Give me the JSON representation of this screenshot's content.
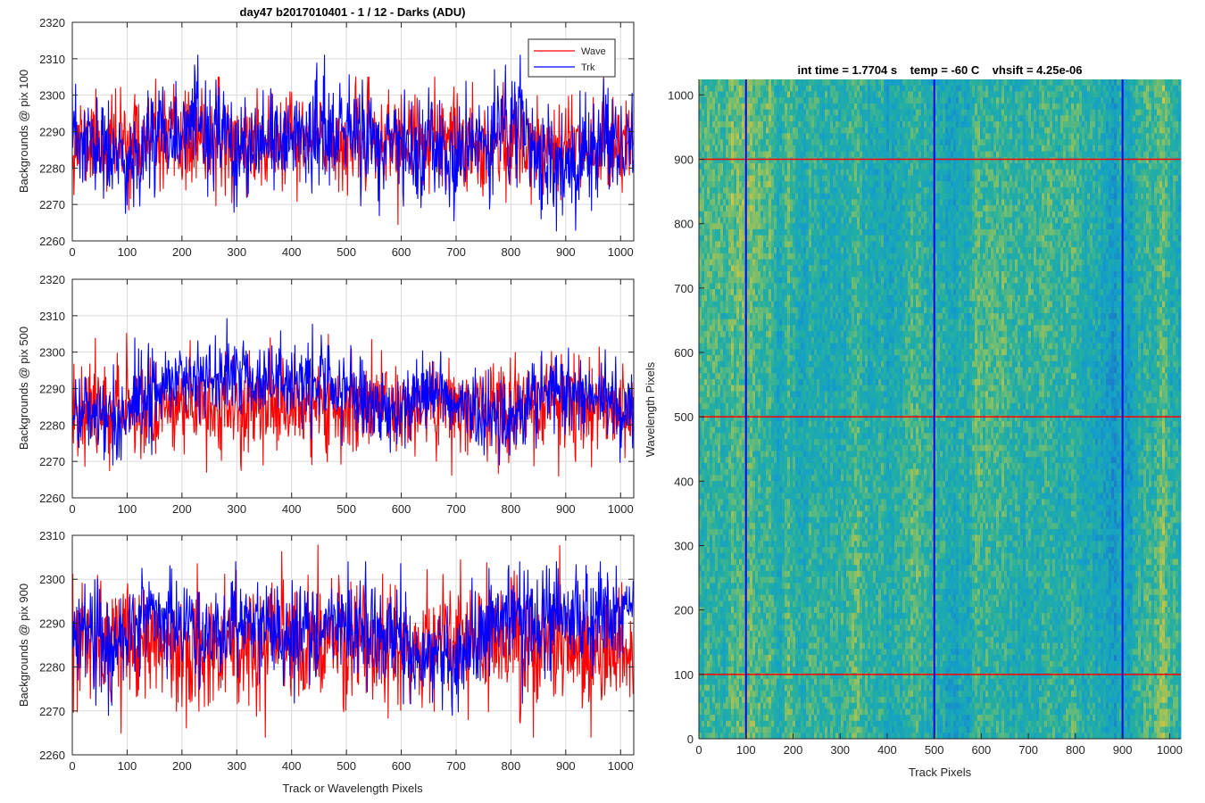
{
  "figure_title": "day47 b2017010401 - 1 / 12 - Darks (ADU)",
  "colors": {
    "wave": "#ff0000",
    "trk": "#0000ff",
    "grid": "#d9d9d9",
    "axes": "#262626"
  },
  "chart_data": [
    {
      "type": "line",
      "title": "day47 b2017010401 - 1 / 12 - Darks (ADU)",
      "xlabel": "",
      "ylabel": "Backgrounds @ pix 100",
      "xlim": [
        0,
        1024
      ],
      "ylim": [
        2260,
        2320
      ],
      "xticks": [
        0,
        100,
        200,
        300,
        400,
        500,
        600,
        700,
        800,
        900,
        1000
      ],
      "yticks": [
        2260,
        2270,
        2280,
        2290,
        2300,
        2310,
        2320
      ],
      "grid": true,
      "legend": {
        "position": "top-right",
        "entries": [
          "Wave",
          "Trk"
        ]
      },
      "series": [
        {
          "name": "Wave",
          "color": "#ff0000",
          "x_range": [
            0,
            1024
          ],
          "approx_mean": 2287,
          "approx_min": 2263,
          "approx_max": 2305,
          "noise_sd": 6.5
        },
        {
          "name": "Trk",
          "color": "#0000ff",
          "x_range": [
            0,
            1024
          ],
          "approx_mean": 2286,
          "approx_min": 2261,
          "approx_max": 2311,
          "noise_sd": 7,
          "profile": [
            [
              0,
              2288
            ],
            [
              60,
              2284
            ],
            [
              100,
              2280
            ],
            [
              160,
              2292
            ],
            [
              240,
              2290
            ],
            [
              330,
              2283
            ],
            [
              420,
              2290
            ],
            [
              520,
              2289
            ],
            [
              600,
              2285
            ],
            [
              700,
              2282
            ],
            [
              760,
              2288
            ],
            [
              810,
              2293
            ],
            [
              880,
              2278
            ],
            [
              940,
              2284
            ],
            [
              1024,
              2288
            ]
          ]
        }
      ]
    },
    {
      "type": "line",
      "title": "",
      "xlabel": "",
      "ylabel": "Backgrounds @ pix 500",
      "xlim": [
        0,
        1024
      ],
      "ylim": [
        2260,
        2320
      ],
      "xticks": [
        0,
        100,
        200,
        300,
        400,
        500,
        600,
        700,
        800,
        900,
        1000
      ],
      "yticks": [
        2260,
        2270,
        2280,
        2290,
        2300,
        2310,
        2320
      ],
      "grid": true,
      "series": [
        {
          "name": "Wave",
          "color": "#ff0000",
          "x_range": [
            0,
            1024
          ],
          "approx_mean": 2285,
          "approx_min": 2261,
          "approx_max": 2310,
          "noise_sd": 6.5
        },
        {
          "name": "Trk",
          "color": "#0000ff",
          "x_range": [
            0,
            1024
          ],
          "approx_mean": 2289,
          "approx_min": 2269,
          "approx_max": 2311,
          "noise_sd": 5.5,
          "profile": [
            [
              0,
              2285
            ],
            [
              80,
              2281
            ],
            [
              150,
              2291
            ],
            [
              240,
              2293
            ],
            [
              330,
              2294
            ],
            [
              420,
              2292
            ],
            [
              500,
              2290
            ],
            [
              580,
              2282
            ],
            [
              660,
              2291
            ],
            [
              720,
              2284
            ],
            [
              790,
              2281
            ],
            [
              860,
              2291
            ],
            [
              940,
              2288
            ],
            [
              1024,
              2284
            ]
          ]
        }
      ]
    },
    {
      "type": "line",
      "title": "",
      "xlabel": "Track or Wavelength Pixels",
      "ylabel": "Backgrounds @ pix 900",
      "xlim": [
        0,
        1024
      ],
      "ylim": [
        2260,
        2310
      ],
      "xticks": [
        0,
        100,
        200,
        300,
        400,
        500,
        600,
        700,
        800,
        900,
        1000
      ],
      "yticks": [
        2260,
        2270,
        2280,
        2290,
        2300,
        2310
      ],
      "grid": true,
      "series": [
        {
          "name": "Wave",
          "color": "#ff0000",
          "x_range": [
            0,
            1024
          ],
          "approx_mean": 2285,
          "approx_min": 2264,
          "approx_max": 2310,
          "noise_sd": 7
        },
        {
          "name": "Trk",
          "color": "#0000ff",
          "x_range": [
            0,
            1024
          ],
          "approx_mean": 2289,
          "approx_min": 2269,
          "approx_max": 2304,
          "noise_sd": 5.5,
          "profile": [
            [
              0,
              2290
            ],
            [
              70,
              2283
            ],
            [
              130,
              2294
            ],
            [
              200,
              2288
            ],
            [
              300,
              2290
            ],
            [
              400,
              2287
            ],
            [
              500,
              2290
            ],
            [
              600,
              2286
            ],
            [
              700,
              2280
            ],
            [
              780,
              2293
            ],
            [
              850,
              2291
            ],
            [
              950,
              2290
            ],
            [
              1024,
              2292
            ]
          ]
        }
      ]
    },
    {
      "type": "heatmap",
      "title": "int time = 1.7704 s    temp = -60 C    vhsift = 4.25e-06",
      "xlabel": "Track Pixels",
      "ylabel": "Wavelength Pixels",
      "xlim": [
        0,
        1024
      ],
      "ylim": [
        0,
        1024
      ],
      "xticks": [
        0,
        100,
        200,
        300,
        400,
        500,
        600,
        700,
        800,
        900,
        1000
      ],
      "yticks": [
        0,
        100,
        200,
        300,
        400,
        500,
        600,
        700,
        800,
        900,
        1000
      ],
      "colormap": "parula",
      "marker_lines": {
        "vertical_x": [
          100,
          500,
          900
        ],
        "vertical_color": "#0000ff",
        "horizontal_y": [
          100,
          500,
          900
        ],
        "horizontal_color": "#ff0000"
      }
    }
  ]
}
